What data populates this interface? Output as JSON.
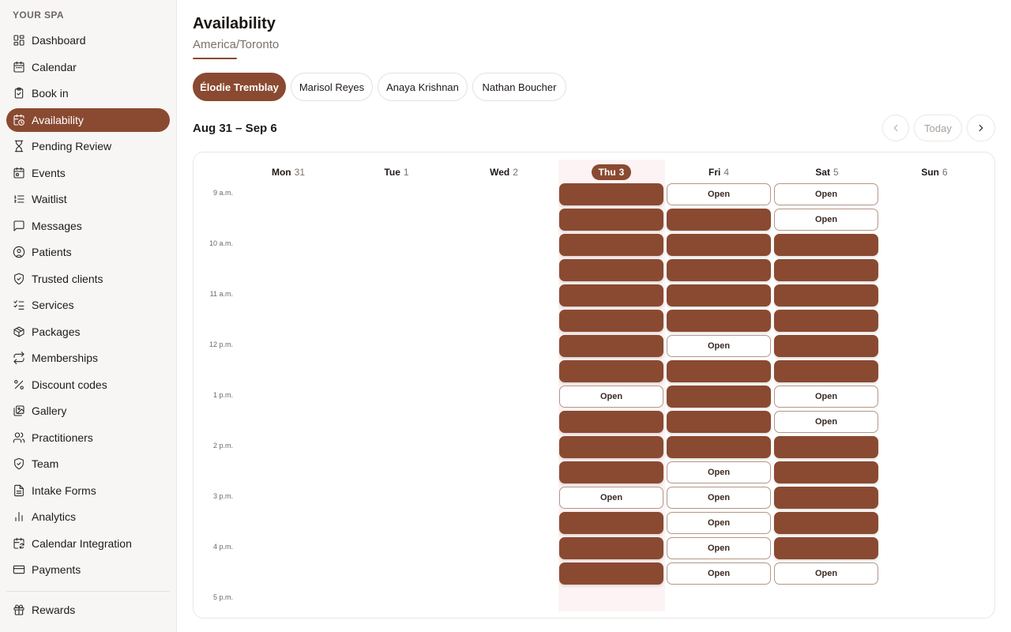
{
  "sidebar": {
    "brand": "YOUR SPA",
    "items": [
      {
        "label": "Dashboard",
        "icon": "grid-icon",
        "active": false
      },
      {
        "label": "Calendar",
        "icon": "calendar-icon",
        "active": false
      },
      {
        "label": "Book in",
        "icon": "clipboard-icon",
        "active": false
      },
      {
        "label": "Availability",
        "icon": "calendar-clock-icon",
        "active": true
      },
      {
        "label": "Pending Review",
        "icon": "hourglass-icon",
        "active": false
      },
      {
        "label": "Events",
        "icon": "calendar-event-icon",
        "active": false
      },
      {
        "label": "Waitlist",
        "icon": "list-ordered-icon",
        "active": false
      },
      {
        "label": "Messages",
        "icon": "message-icon",
        "active": false
      },
      {
        "label": "Patients",
        "icon": "user-circle-icon",
        "active": false
      },
      {
        "label": "Trusted clients",
        "icon": "shield-check-icon",
        "active": false
      },
      {
        "label": "Services",
        "icon": "list-checks-icon",
        "active": false
      },
      {
        "label": "Packages",
        "icon": "package-icon",
        "active": false
      },
      {
        "label": "Memberships",
        "icon": "repeat-icon",
        "active": false
      },
      {
        "label": "Discount codes",
        "icon": "percent-icon",
        "active": false
      },
      {
        "label": "Gallery",
        "icon": "images-icon",
        "active": false
      },
      {
        "label": "Practitioners",
        "icon": "users-icon",
        "active": false
      },
      {
        "label": "Team",
        "icon": "shield-icon",
        "active": false
      },
      {
        "label": "Intake Forms",
        "icon": "file-text-icon",
        "active": false
      },
      {
        "label": "Analytics",
        "icon": "bar-chart-icon",
        "active": false
      },
      {
        "label": "Calendar Integration",
        "icon": "calendar-sync-icon",
        "active": false
      },
      {
        "label": "Payments",
        "icon": "credit-card-icon",
        "active": false
      }
    ],
    "footer_items": [
      {
        "label": "Rewards",
        "icon": "gift-icon",
        "active": false
      }
    ]
  },
  "header": {
    "title": "Availability",
    "timezone": "America/Toronto"
  },
  "practitioners": [
    {
      "name": "Élodie Tremblay",
      "active": true
    },
    {
      "name": "Marisol Reyes",
      "active": false
    },
    {
      "name": "Anaya Krishnan",
      "active": false
    },
    {
      "name": "Nathan Boucher",
      "active": false
    }
  ],
  "week": {
    "range": "Aug 31 – Sep 6",
    "today_label": "Today",
    "days": [
      {
        "name": "Mon",
        "num": "31",
        "today": false
      },
      {
        "name": "Tue",
        "num": "1",
        "today": false
      },
      {
        "name": "Wed",
        "num": "2",
        "today": false
      },
      {
        "name": "Thu",
        "num": "3",
        "today": true
      },
      {
        "name": "Fri",
        "num": "4",
        "today": false
      },
      {
        "name": "Sat",
        "num": "5",
        "today": false
      },
      {
        "name": "Sun",
        "num": "6",
        "today": false
      }
    ],
    "time_labels": [
      "9 a.m.",
      "10 a.m.",
      "11 a.m.",
      "12 p.m.",
      "1 p.m.",
      "2 p.m.",
      "3 p.m.",
      "4 p.m.",
      "5 p.m."
    ],
    "open_label": "Open",
    "slots": {
      "Thu": [
        "booked",
        "booked",
        "booked",
        "booked",
        "booked",
        "booked",
        "booked",
        "booked",
        "open",
        "booked",
        "booked",
        "booked",
        "open",
        "booked",
        "booked",
        "booked"
      ],
      "Fri": [
        "open",
        "booked",
        "booked",
        "booked",
        "booked",
        "booked",
        "open",
        "booked",
        "booked",
        "booked",
        "booked",
        "open",
        "open",
        "open",
        "open",
        "open"
      ],
      "Sat": [
        "open",
        "open",
        "booked",
        "booked",
        "booked",
        "booked",
        "booked",
        "booked",
        "open",
        "open",
        "booked",
        "booked",
        "booked",
        "booked",
        "booked",
        "open"
      ]
    }
  },
  "colors": {
    "accent": "#8a4a31",
    "today_bg": "#fdf3f4"
  }
}
